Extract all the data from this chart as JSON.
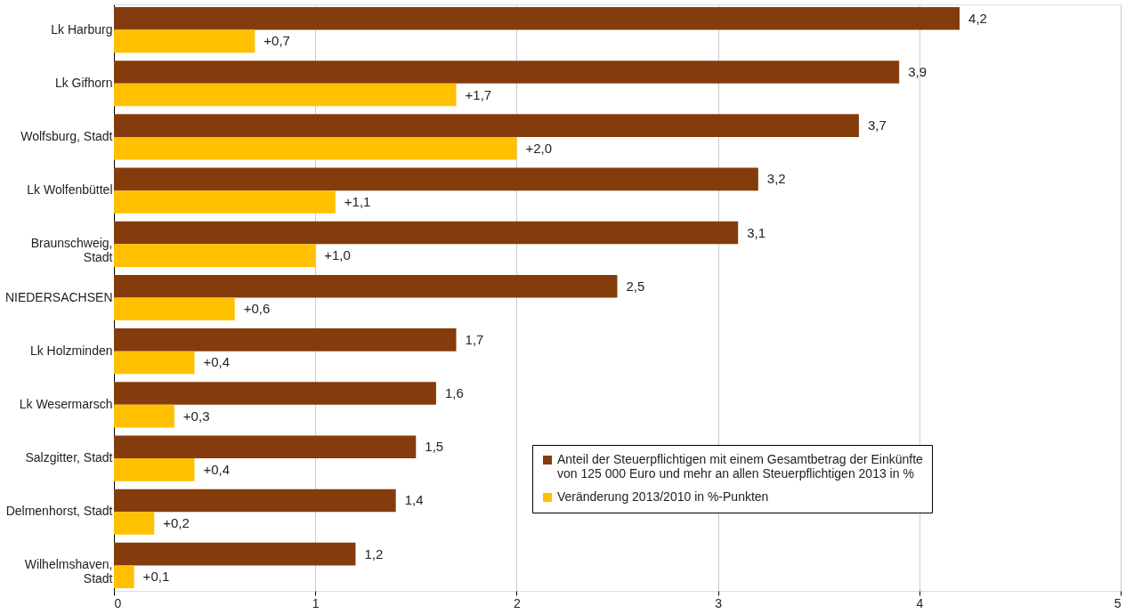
{
  "chart_data": {
    "type": "bar",
    "orientation": "horizontal",
    "categories": [
      "Lk Harburg",
      "Lk Gifhorn",
      "Wolfsburg, Stadt",
      "Lk Wolfenbüttel",
      "Braunschweig, Stadt",
      "NIEDERSACHSEN",
      "Lk Holzminden",
      "Lk Wesermarsch",
      "Salzgitter, Stadt",
      "Delmenhorst, Stadt",
      "Wilhelmshaven, Stadt"
    ],
    "series": [
      {
        "name": "Anteil der Steuerpflichtigen mit einem Gesamtbetrag der Einkünfte von 125 000 Euro und mehr an allen Steuerpflichtigen 2013 in %",
        "color": "#843c0c",
        "values": [
          4.2,
          3.9,
          3.7,
          3.2,
          3.1,
          2.5,
          1.7,
          1.6,
          1.5,
          1.4,
          1.2
        ],
        "value_labels": [
          "4,2",
          "3,9",
          "3,7",
          "3,2",
          "3,1",
          "2,5",
          "1,7",
          "1,6",
          "1,5",
          "1,4",
          "1,2"
        ]
      },
      {
        "name": "Veränderung 2013/2010 in %-Punkten",
        "color": "#ffc000",
        "values": [
          0.7,
          1.7,
          2.0,
          1.1,
          1.0,
          0.6,
          0.4,
          0.3,
          0.4,
          0.2,
          0.1
        ],
        "value_labels": [
          "+0,7",
          "+1,7",
          "+2,0",
          "+1,1",
          "+1,0",
          "+0,6",
          "+0,4",
          "+0,3",
          "+0,4",
          "+0,2",
          "+0,1"
        ]
      }
    ],
    "xlim": [
      0,
      5
    ],
    "xticks": [
      0,
      1,
      2,
      3,
      4,
      5
    ],
    "grid": "x",
    "legend": "bottom right"
  }
}
